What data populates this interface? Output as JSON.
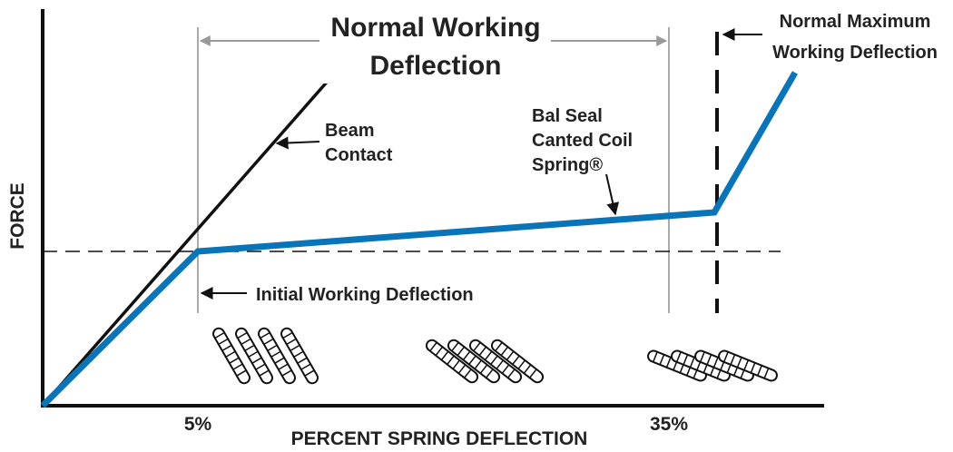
{
  "title": {
    "line1": "Normal Working",
    "line2": "Deflection"
  },
  "annotations": {
    "max_deflection": {
      "line1": "Normal Maximum",
      "line2": "Working Deflection"
    },
    "beam": {
      "line1": "Beam",
      "line2": "Contact"
    },
    "bal_seal": {
      "line1": "Bal Seal",
      "line2": "Canted Coil",
      "line3": "Spring®"
    },
    "initial": "Initial Working Deflection"
  },
  "axes": {
    "y_label": "FORCE",
    "x_label": "PERCENT SPRING DEFLECTION",
    "x_marks": [
      "5%",
      "35%"
    ]
  }
}
